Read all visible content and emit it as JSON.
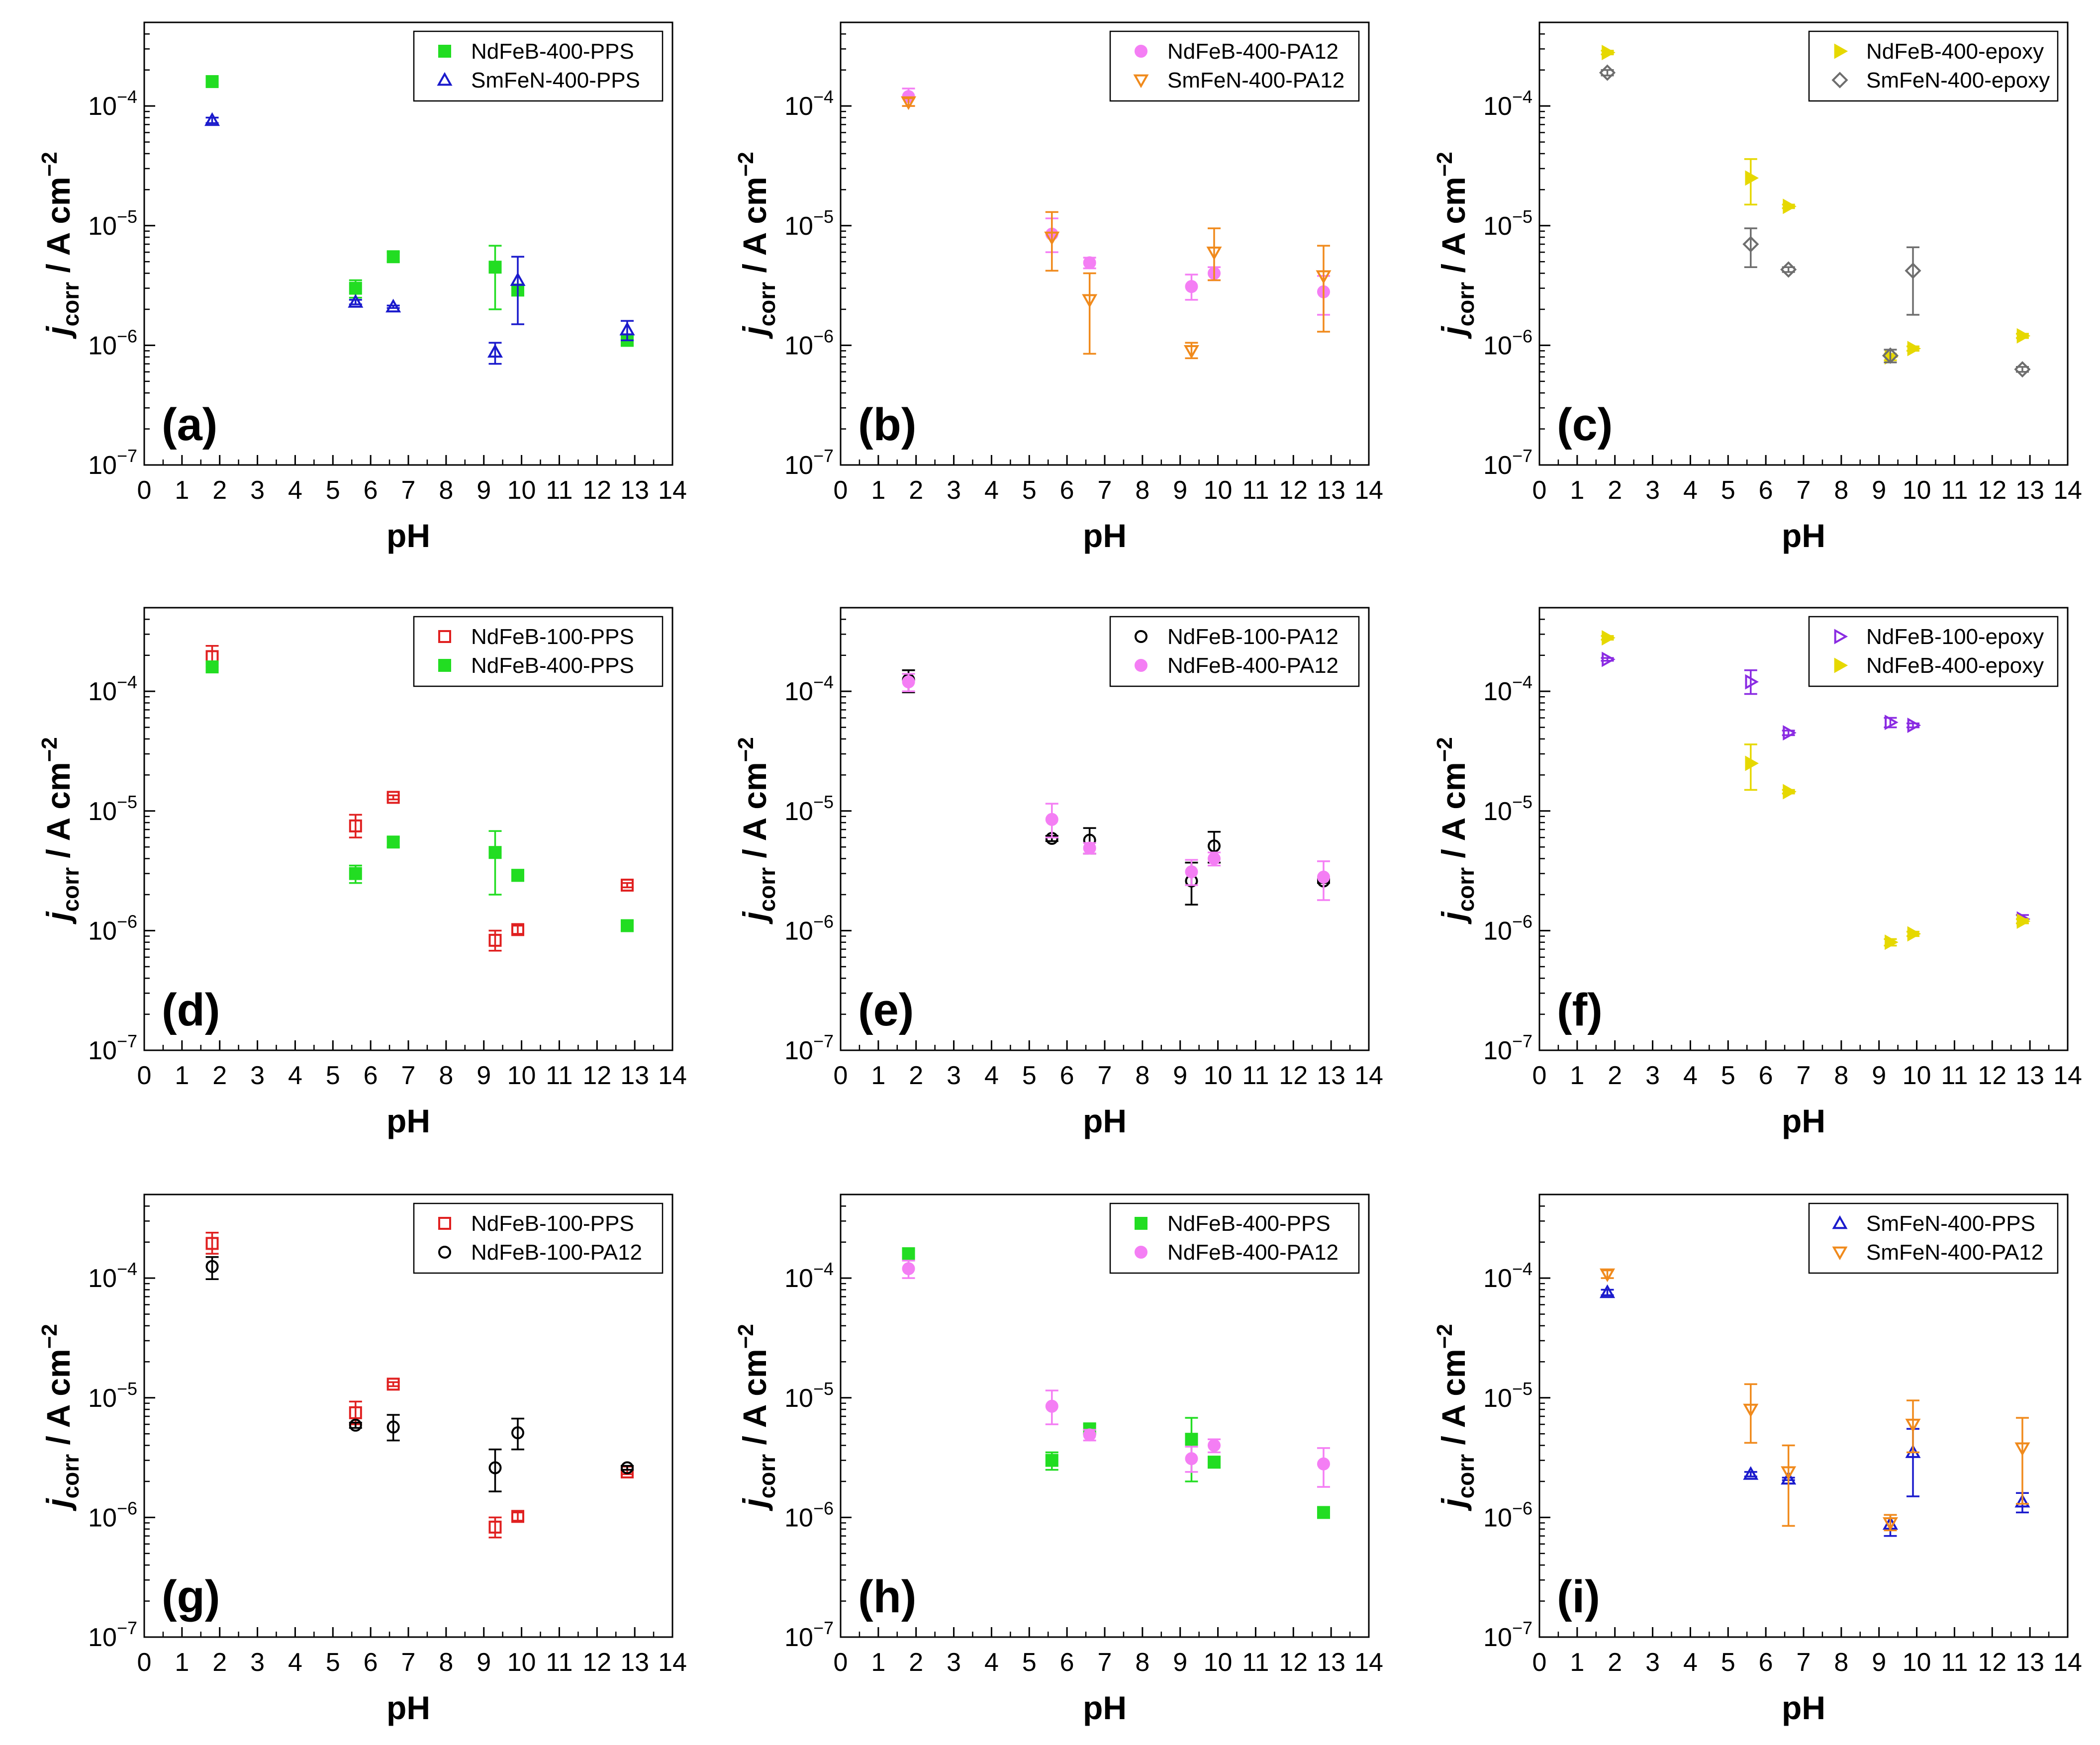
{
  "figure": {
    "panels": [
      {
        "label": "(a)",
        "ylabel_main": "j",
        "ylabel_sub": "corr",
        "ylabel_unit": " / A cm",
        "ylabel_exp": "−2",
        "xlabel": "pH"
      },
      {
        "label": "(b)",
        "ylabel_main": "j",
        "ylabel_sub": "corr",
        "ylabel_unit": " / A cm",
        "ylabel_exp": "−2",
        "xlabel": "pH"
      },
      {
        "label": "(c)",
        "ylabel_main": "j",
        "ylabel_sub": "corr",
        "ylabel_unit": " / A cm",
        "ylabel_exp": "−2",
        "xlabel": "pH"
      },
      {
        "label": "(d)",
        "ylabel_main": "j",
        "ylabel_sub": "corr",
        "ylabel_unit": " / A cm",
        "ylabel_exp": "−2",
        "xlabel": "pH"
      },
      {
        "label": "(e)",
        "ylabel_main": "j",
        "ylabel_sub": "corr",
        "ylabel_unit": " / A cm",
        "ylabel_exp": "−2",
        "xlabel": "pH"
      },
      {
        "label": "(f)",
        "ylabel_main": "j",
        "ylabel_sub": "corr",
        "ylabel_unit": " / A cm",
        "ylabel_exp": "−2",
        "xlabel": "pH"
      },
      {
        "label": "(g)",
        "ylabel_main": "j",
        "ylabel_sub": "corr",
        "ylabel_unit": " / A cm",
        "ylabel_exp": "−2",
        "xlabel": "pH"
      },
      {
        "label": "(h)",
        "ylabel_main": "j",
        "ylabel_sub": "corr",
        "ylabel_unit": " / A cm",
        "ylabel_exp": "−2",
        "xlabel": "pH"
      },
      {
        "label": "(i)",
        "ylabel_main": "j",
        "ylabel_sub": "corr",
        "ylabel_unit": " / A cm",
        "ylabel_exp": "−2",
        "xlabel": "pH"
      }
    ]
  },
  "styles": {
    "NdFeB-400-PPS": {
      "color": "#22dd22",
      "marker": "square-filled"
    },
    "SmFeN-400-PPS": {
      "color": "#1a1acc",
      "marker": "triangle-up-open"
    },
    "NdFeB-400-PA12": {
      "color": "#f47ef4",
      "marker": "circle-filled"
    },
    "SmFeN-400-PA12": {
      "color": "#f08a1c",
      "marker": "triangle-down-open"
    },
    "NdFeB-400-epoxy": {
      "color": "#e6d800",
      "marker": "triangle-right-filled"
    },
    "SmFeN-400-epoxy": {
      "color": "#6e6e6e",
      "marker": "diamond-open"
    },
    "NdFeB-100-PPS": {
      "color": "#e02020",
      "marker": "square-open"
    },
    "NdFeB-100-PA12": {
      "color": "#000000",
      "marker": "circle-open"
    },
    "NdFeB-100-epoxy": {
      "color": "#8a2be2",
      "marker": "triangle-right-open"
    }
  },
  "series_data": {
    "NdFeB-400-PPS": [
      {
        "x": 1.8,
        "y": 0.00016,
        "lo": 0.00015,
        "hi": 0.00017
      },
      {
        "x": 5.6,
        "y": 3e-06,
        "lo": 2.5e-06,
        "hi": 3.5e-06
      },
      {
        "x": 6.6,
        "y": 5.5e-06,
        "lo": 5e-06,
        "hi": 6e-06
      },
      {
        "x": 9.3,
        "y": 4.5e-06,
        "lo": 2e-06,
        "hi": 6.8e-06
      },
      {
        "x": 9.9,
        "y": 2.9e-06,
        "lo": 2.6e-06,
        "hi": 3.2e-06
      },
      {
        "x": 12.8,
        "y": 1.1e-06,
        "lo": 1e-06,
        "hi": 1.2e-06
      }
    ],
    "SmFeN-400-PPS": [
      {
        "x": 1.8,
        "y": 7.6e-05,
        "lo": 7.2e-05,
        "hi": 8e-05
      },
      {
        "x": 5.6,
        "y": 2.3e-06,
        "lo": 2.2e-06,
        "hi": 2.4e-06
      },
      {
        "x": 6.6,
        "y": 2.1e-06,
        "lo": 2.05e-06,
        "hi": 2.15e-06
      },
      {
        "x": 9.3,
        "y": 8.8e-07,
        "lo": 7e-07,
        "hi": 1.05e-06
      },
      {
        "x": 9.9,
        "y": 3.5e-06,
        "lo": 1.5e-06,
        "hi": 5.5e-06
      },
      {
        "x": 12.8,
        "y": 1.35e-06,
        "lo": 1.1e-06,
        "hi": 1.6e-06
      }
    ],
    "NdFeB-400-PA12": [
      {
        "x": 1.8,
        "y": 0.00012,
        "lo": 0.0001,
        "hi": 0.00014
      },
      {
        "x": 5.6,
        "y": 8.5e-06,
        "lo": 6e-06,
        "hi": 1.15e-05
      },
      {
        "x": 6.6,
        "y": 4.9e-06,
        "lo": 4.4e-06,
        "hi": 5.4e-06
      },
      {
        "x": 9.3,
        "y": 3.1e-06,
        "lo": 2.4e-06,
        "hi": 3.9e-06
      },
      {
        "x": 9.9,
        "y": 4e-06,
        "lo": 3.5e-06,
        "hi": 4.5e-06
      },
      {
        "x": 12.8,
        "y": 2.8e-06,
        "lo": 1.8e-06,
        "hi": 3.8e-06
      }
    ],
    "SmFeN-400-PA12": [
      {
        "x": 1.8,
        "y": 0.000108,
        "lo": 0.0001,
        "hi": 0.000116
      },
      {
        "x": 5.6,
        "y": 8e-06,
        "lo": 4.2e-06,
        "hi": 1.3e-05
      },
      {
        "x": 6.6,
        "y": 2.4e-06,
        "lo": 8.5e-07,
        "hi": 4e-06
      },
      {
        "x": 9.3,
        "y": 9e-07,
        "lo": 7.8e-07,
        "hi": 1.05e-06
      },
      {
        "x": 9.9,
        "y": 6e-06,
        "lo": 3.5e-06,
        "hi": 9.5e-06
      },
      {
        "x": 12.8,
        "y": 3.8e-06,
        "lo": 1.3e-06,
        "hi": 6.8e-06
      }
    ],
    "NdFeB-400-epoxy": [
      {
        "x": 1.8,
        "y": 0.00028,
        "lo": 0.00027,
        "hi": 0.00029
      },
      {
        "x": 5.6,
        "y": 2.5e-05,
        "lo": 1.5e-05,
        "hi": 3.6e-05
      },
      {
        "x": 6.6,
        "y": 1.45e-05,
        "lo": 1.4e-05,
        "hi": 1.5e-05
      },
      {
        "x": 9.3,
        "y": 8e-07,
        "lo": 7.5e-07,
        "hi": 8.5e-07
      },
      {
        "x": 9.9,
        "y": 9.4e-07,
        "lo": 9e-07,
        "hi": 9.8e-07
      },
      {
        "x": 12.8,
        "y": 1.2e-06,
        "lo": 1.15e-06,
        "hi": 1.25e-06
      }
    ],
    "SmFeN-400-epoxy": [
      {
        "x": 1.8,
        "y": 0.00019,
        "lo": 0.00018,
        "hi": 0.0002
      },
      {
        "x": 5.6,
        "y": 7e-06,
        "lo": 4.5e-06,
        "hi": 9.5e-06
      },
      {
        "x": 6.6,
        "y": 4.3e-06,
        "lo": 4.1e-06,
        "hi": 4.5e-06
      },
      {
        "x": 9.3,
        "y": 8.2e-07,
        "lo": 7.2e-07,
        "hi": 9.2e-07
      },
      {
        "x": 9.9,
        "y": 4.2e-06,
        "lo": 1.8e-06,
        "hi": 6.6e-06
      },
      {
        "x": 12.8,
        "y": 6.3e-07,
        "lo": 6e-07,
        "hi": 6.6e-07
      }
    ],
    "NdFeB-100-PPS": [
      {
        "x": 1.8,
        "y": 0.000195,
        "lo": 0.00016,
        "hi": 0.00024
      },
      {
        "x": 5.6,
        "y": 7.5e-06,
        "lo": 6e-06,
        "hi": 9.3e-06
      },
      {
        "x": 6.6,
        "y": 1.3e-05,
        "lo": 1.25e-05,
        "hi": 1.35e-05
      },
      {
        "x": 9.3,
        "y": 8.3e-07,
        "lo": 6.8e-07,
        "hi": 1e-06
      },
      {
        "x": 9.9,
        "y": 1.02e-06,
        "lo": 9.4e-07,
        "hi": 1.1e-06
      },
      {
        "x": 12.8,
        "y": 2.4e-06,
        "lo": 2.3e-06,
        "hi": 2.5e-06
      }
    ],
    "NdFeB-100-PA12": [
      {
        "x": 1.8,
        "y": 0.000125,
        "lo": 9.8e-05,
        "hi": 0.00015
      },
      {
        "x": 5.6,
        "y": 5.9e-06,
        "lo": 5.6e-06,
        "hi": 6.2e-06
      },
      {
        "x": 6.6,
        "y": 5.7e-06,
        "lo": 4.4e-06,
        "hi": 7.2e-06
      },
      {
        "x": 9.3,
        "y": 2.6e-06,
        "lo": 1.65e-06,
        "hi": 3.7e-06
      },
      {
        "x": 9.9,
        "y": 5.1e-06,
        "lo": 3.7e-06,
        "hi": 6.7e-06
      },
      {
        "x": 12.8,
        "y": 2.6e-06,
        "lo": 2.5e-06,
        "hi": 2.7e-06
      }
    ],
    "NdFeB-100-epoxy": [
      {
        "x": 1.8,
        "y": 0.000185,
        "lo": 0.00018,
        "hi": 0.00019
      },
      {
        "x": 5.6,
        "y": 0.00012,
        "lo": 9.5e-05,
        "hi": 0.00015
      },
      {
        "x": 6.6,
        "y": 4.5e-05,
        "lo": 4.3e-05,
        "hi": 4.7e-05
      },
      {
        "x": 9.3,
        "y": 5.5e-05,
        "lo": 5e-05,
        "hi": 6e-05
      },
      {
        "x": 9.9,
        "y": 5.2e-05,
        "lo": 5e-05,
        "hi": 5.4e-05
      },
      {
        "x": 12.8,
        "y": 1.25e-06,
        "lo": 1.15e-06,
        "hi": 1.35e-06
      }
    ]
  },
  "chart_data": [
    {
      "type": "scatter",
      "panel": "(a)",
      "xlabel": "pH",
      "ylabel": "j_corr / A cm^-2",
      "yscale": "log",
      "xlim": [
        0,
        14
      ],
      "ylim": [
        1e-07,
        0.0005
      ],
      "x_ticks": [
        "0",
        "1",
        "2",
        "3",
        "4",
        "5",
        "6",
        "7",
        "8",
        "9",
        "10",
        "11",
        "12",
        "13",
        "14"
      ],
      "y_ticks": [
        "10^-7",
        "10^-6",
        "10^-5",
        "10^-4"
      ],
      "legend": "top-right",
      "series": [
        "NdFeB-400-PPS",
        "SmFeN-400-PPS"
      ]
    },
    {
      "type": "scatter",
      "panel": "(b)",
      "xlabel": "pH",
      "ylabel": "j_corr / A cm^-2",
      "yscale": "log",
      "xlim": [
        0,
        14
      ],
      "ylim": [
        1e-07,
        0.0005
      ],
      "x_ticks": [
        "0",
        "1",
        "2",
        "3",
        "4",
        "5",
        "6",
        "7",
        "8",
        "9",
        "10",
        "11",
        "12",
        "13",
        "14"
      ],
      "y_ticks": [
        "10^-7",
        "10^-6",
        "10^-5",
        "10^-4"
      ],
      "legend": "top-right",
      "series": [
        "NdFeB-400-PA12",
        "SmFeN-400-PA12"
      ]
    },
    {
      "type": "scatter",
      "panel": "(c)",
      "xlabel": "pH",
      "ylabel": "j_corr / A cm^-2",
      "yscale": "log",
      "xlim": [
        0,
        14
      ],
      "ylim": [
        1e-07,
        0.0005
      ],
      "x_ticks": [
        "0",
        "1",
        "2",
        "3",
        "4",
        "5",
        "6",
        "7",
        "8",
        "9",
        "10",
        "11",
        "12",
        "13",
        "14"
      ],
      "y_ticks": [
        "10^-7",
        "10^-6",
        "10^-5",
        "10^-4"
      ],
      "legend": "top-right",
      "series": [
        "NdFeB-400-epoxy",
        "SmFeN-400-epoxy"
      ]
    },
    {
      "type": "scatter",
      "panel": "(d)",
      "xlabel": "pH",
      "ylabel": "j_corr / A cm^-2",
      "yscale": "log",
      "xlim": [
        0,
        14
      ],
      "ylim": [
        1e-07,
        0.0005
      ],
      "x_ticks": [
        "0",
        "1",
        "2",
        "3",
        "4",
        "5",
        "6",
        "7",
        "8",
        "9",
        "10",
        "11",
        "12",
        "13",
        "14"
      ],
      "y_ticks": [
        "10^-7",
        "10^-6",
        "10^-5",
        "10^-4"
      ],
      "legend": "top-right",
      "series": [
        "NdFeB-100-PPS",
        "NdFeB-400-PPS"
      ]
    },
    {
      "type": "scatter",
      "panel": "(e)",
      "xlabel": "pH",
      "ylabel": "j_corr / A cm^-2",
      "yscale": "log",
      "xlim": [
        0,
        14
      ],
      "ylim": [
        1e-07,
        0.0005
      ],
      "x_ticks": [
        "0",
        "1",
        "2",
        "3",
        "4",
        "5",
        "6",
        "7",
        "8",
        "9",
        "10",
        "11",
        "12",
        "13",
        "14"
      ],
      "y_ticks": [
        "10^-7",
        "10^-6",
        "10^-5",
        "10^-4"
      ],
      "legend": "top-right",
      "series": [
        "NdFeB-100-PA12",
        "NdFeB-400-PA12"
      ]
    },
    {
      "type": "scatter",
      "panel": "(f)",
      "xlabel": "pH",
      "ylabel": "j_corr / A cm^-2",
      "yscale": "log",
      "xlim": [
        0,
        14
      ],
      "ylim": [
        1e-07,
        0.0005
      ],
      "x_ticks": [
        "0",
        "1",
        "2",
        "3",
        "4",
        "5",
        "6",
        "7",
        "8",
        "9",
        "10",
        "11",
        "12",
        "13",
        "14"
      ],
      "y_ticks": [
        "10^-7",
        "10^-6",
        "10^-5",
        "10^-4"
      ],
      "legend": "top-right",
      "series": [
        "NdFeB-100-epoxy",
        "NdFeB-400-epoxy"
      ]
    },
    {
      "type": "scatter",
      "panel": "(g)",
      "xlabel": "pH",
      "ylabel": "j_corr / A cm^-2",
      "yscale": "log",
      "xlim": [
        0,
        14
      ],
      "ylim": [
        1e-07,
        0.0005
      ],
      "x_ticks": [
        "0",
        "1",
        "2",
        "3",
        "4",
        "5",
        "6",
        "7",
        "8",
        "9",
        "10",
        "11",
        "12",
        "13",
        "14"
      ],
      "y_ticks": [
        "10^-7",
        "10^-6",
        "10^-5",
        "10^-4"
      ],
      "legend": "top-right",
      "series": [
        "NdFeB-100-PPS",
        "NdFeB-100-PA12"
      ]
    },
    {
      "type": "scatter",
      "panel": "(h)",
      "xlabel": "pH",
      "ylabel": "j_corr / A cm^-2",
      "yscale": "log",
      "xlim": [
        0,
        14
      ],
      "ylim": [
        1e-07,
        0.0005
      ],
      "x_ticks": [
        "0",
        "1",
        "2",
        "3",
        "4",
        "5",
        "6",
        "7",
        "8",
        "9",
        "10",
        "11",
        "12",
        "13",
        "14"
      ],
      "y_ticks": [
        "10^-7",
        "10^-6",
        "10^-5",
        "10^-4"
      ],
      "legend": "top-right",
      "series": [
        "NdFeB-400-PPS",
        "NdFeB-400-PA12"
      ]
    },
    {
      "type": "scatter",
      "panel": "(i)",
      "xlabel": "pH",
      "ylabel": "j_corr / A cm^-2",
      "yscale": "log",
      "xlim": [
        0,
        14
      ],
      "ylim": [
        1e-07,
        0.0005
      ],
      "x_ticks": [
        "0",
        "1",
        "2",
        "3",
        "4",
        "5",
        "6",
        "7",
        "8",
        "9",
        "10",
        "11",
        "12",
        "13",
        "14"
      ],
      "y_ticks": [
        "10^-7",
        "10^-6",
        "10^-5",
        "10^-4"
      ],
      "legend": "top-right",
      "series": [
        "SmFeN-400-PPS",
        "SmFeN-400-PA12"
      ]
    }
  ]
}
